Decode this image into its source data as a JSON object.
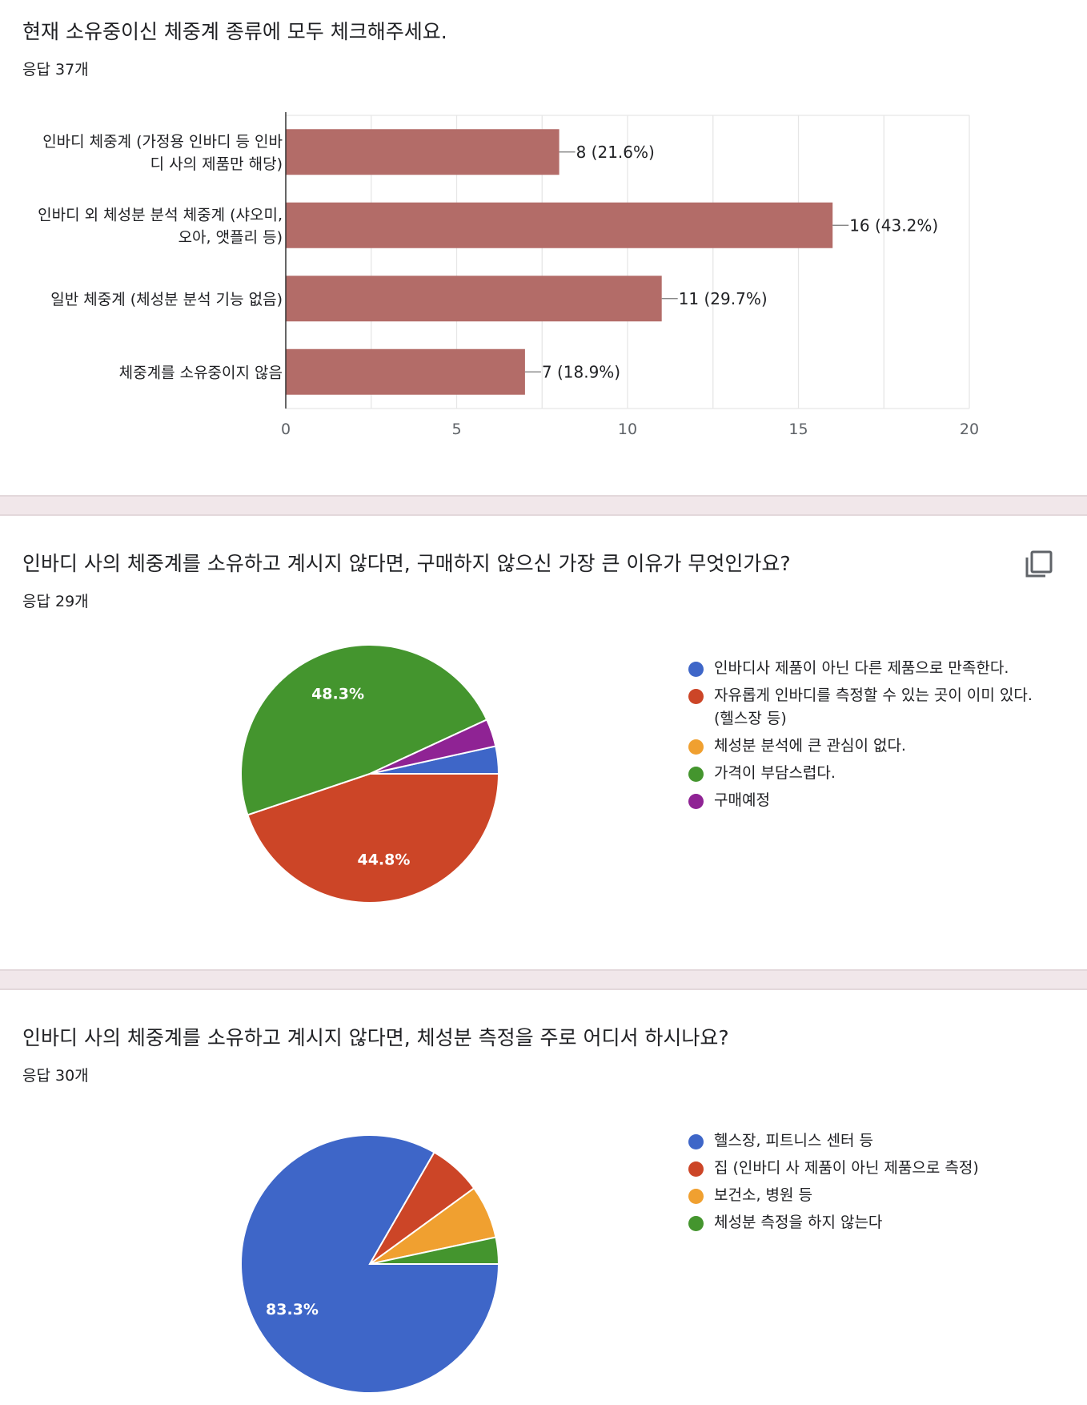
{
  "q1": {
    "title": "현재 소유중이신 체중계 종류에 모두 체크해주세요.",
    "response_count": "응답 37개"
  },
  "q2": {
    "title": "인바디 사의 체중계를 소유하고 계시지 않다면, 구매하지 않으신 가장 큰 이유가 무엇인가요?",
    "response_count": "응답 29개",
    "copy_icon": "copy-icon"
  },
  "q3": {
    "title": "인바디 사의 체중계를 소유하고 계시지 않다면, 체성분 측정을 주로 어디서 하시나요?",
    "response_count": "응답 30개"
  },
  "colors": {
    "bar": "#b36c68",
    "blue": "#3e66c8",
    "red": "#cc4527",
    "orange": "#f0a030",
    "green": "#44952e",
    "purple": "#8f2394"
  },
  "chart_data": [
    {
      "type": "bar",
      "orientation": "horizontal",
      "categories": [
        [
          "인바디 체중계 (가정용 인바디 등 인바",
          "디 사의 제품만 해당)"
        ],
        [
          "인바디 외 체성분 분석 체중계 (샤오미,",
          "오아, 앳플리 등)"
        ],
        [
          "일반 체중계 (체성분 분석 기능 없음)"
        ],
        [
          "체중계를 소유중이지 않음"
        ]
      ],
      "values": [
        8,
        16,
        11,
        7
      ],
      "data_labels": [
        "8 (21.6%)",
        "16 (43.2%)",
        "11 (29.7%)",
        "7 (18.9%)"
      ],
      "xlim": [
        0,
        20
      ],
      "xticks": [
        "0",
        "5",
        "10",
        "15",
        "20"
      ],
      "grid": true
    },
    {
      "type": "pie",
      "labels": [
        "인바디사 제품이 아닌 다른 제품으로 만족한다.",
        "자유롭게 인바디를 측정할 수 있는 곳이 이미 있다. (헬스장 등)",
        "체성분 분석에 큰 관심이 없다.",
        "가격이 부담스럽다.",
        "구매예정"
      ],
      "values": [
        1,
        13,
        0,
        14,
        1
      ],
      "slice_labels": [
        "",
        "44.8%",
        "",
        "48.3%",
        ""
      ],
      "colors": [
        "#3e66c8",
        "#cc4527",
        "#f0a030",
        "#44952e",
        "#8f2394"
      ],
      "legend": "right"
    },
    {
      "type": "pie",
      "labels": [
        "헬스장, 피트니스 센터 등",
        "집 (인바디 사 제품이 아닌 제품으로 측정)",
        "보건소, 병원 등",
        "체성분 측정을 하지 않는다"
      ],
      "values": [
        25,
        2,
        2,
        1
      ],
      "slice_labels": [
        "83.3%",
        "",
        "",
        ""
      ],
      "colors": [
        "#3e66c8",
        "#cc4527",
        "#f0a030",
        "#44952e"
      ],
      "legend": "right"
    }
  ]
}
